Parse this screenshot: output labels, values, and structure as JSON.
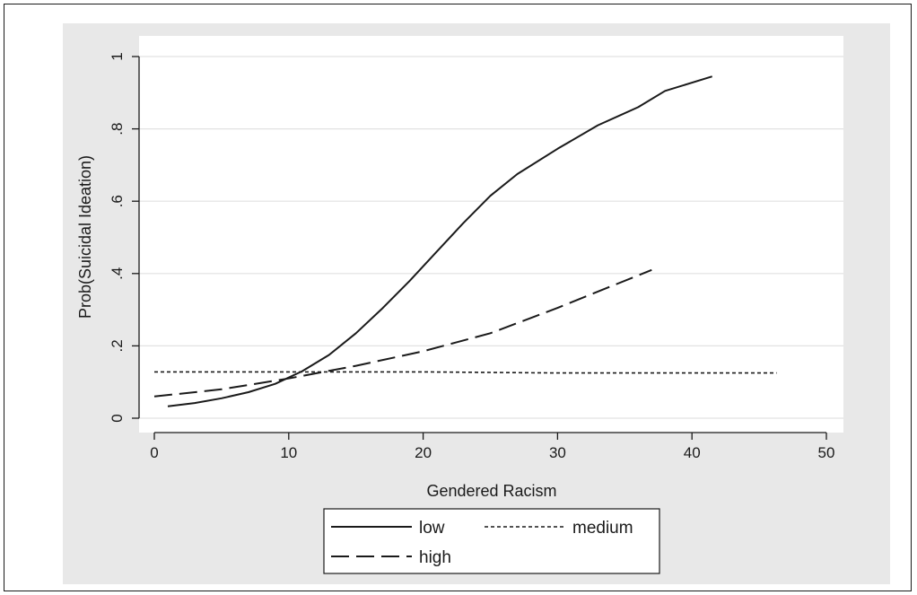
{
  "chart_data": {
    "type": "line",
    "title": "",
    "xlabel": "Gendered Racism",
    "ylabel": "Prob(Suicidal Ideation)",
    "xlim": [
      0,
      50
    ],
    "ylim": [
      0,
      1
    ],
    "xticks": [
      0,
      10,
      20,
      30,
      40,
      50
    ],
    "xtick_labels": [
      "0",
      "10",
      "20",
      "30",
      "40",
      "50"
    ],
    "yticks": [
      0,
      0.2,
      0.4,
      0.6,
      0.8,
      1
    ],
    "ytick_labels": [
      "0",
      ".2",
      ".4",
      ".6",
      ".8",
      "1"
    ],
    "grid": true,
    "legend_position": "bottom",
    "series": [
      {
        "name": "low",
        "style": "solid",
        "x": [
          1,
          3,
          5,
          7,
          9,
          11,
          13,
          15,
          17,
          19,
          21,
          23,
          25,
          27,
          30,
          33,
          36,
          38,
          41.5
        ],
        "y": [
          0.033,
          0.042,
          0.055,
          0.072,
          0.095,
          0.13,
          0.175,
          0.235,
          0.305,
          0.38,
          0.46,
          0.54,
          0.615,
          0.675,
          0.745,
          0.81,
          0.86,
          0.905,
          0.945
        ]
      },
      {
        "name": "medium",
        "style": "dotted",
        "x": [
          0,
          10,
          20,
          30,
          40,
          46.3
        ],
        "y": [
          0.128,
          0.128,
          0.128,
          0.125,
          0.125,
          0.125
        ]
      },
      {
        "name": "high",
        "style": "dashed",
        "x": [
          0,
          5,
          10,
          15,
          20,
          25,
          30,
          34,
          37
        ],
        "y": [
          0.06,
          0.08,
          0.11,
          0.145,
          0.185,
          0.235,
          0.305,
          0.365,
          0.41
        ]
      }
    ]
  }
}
